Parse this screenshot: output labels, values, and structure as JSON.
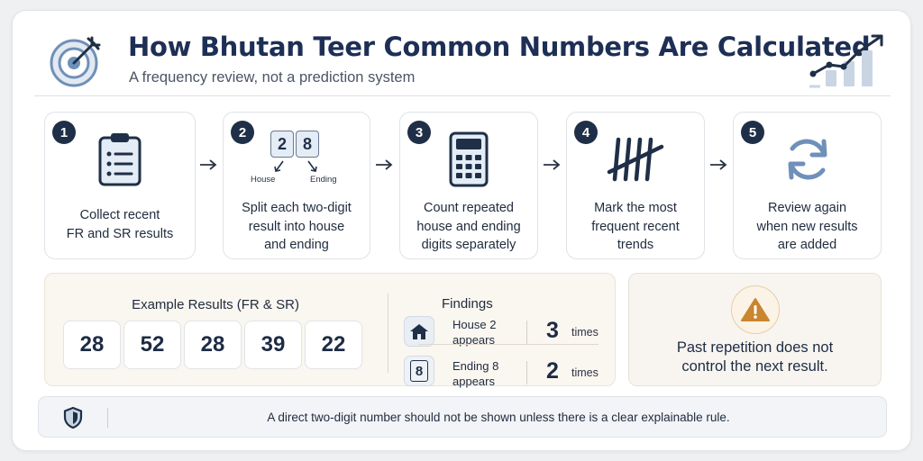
{
  "header": {
    "title": "How Bhutan Teer Common Numbers Are Calculated",
    "subtitle": "A frequency review, not a prediction system",
    "left_icon": "target-icon",
    "right_icon": "growth-chart-icon"
  },
  "steps": [
    {
      "number": "1",
      "icon": "clipboard-checklist-icon",
      "text": [
        "Collect recent",
        "FR and SR results"
      ]
    },
    {
      "number": "2",
      "icon": "digit-split-icon",
      "digits": [
        "2",
        "8"
      ],
      "digit_labels": [
        "House",
        "Ending"
      ],
      "text": [
        "Split each two-digit",
        "result into house",
        "and ending"
      ]
    },
    {
      "number": "3",
      "icon": "calculator-icon",
      "text": [
        "Count repeated",
        "house and ending",
        "digits separately"
      ]
    },
    {
      "number": "4",
      "icon": "tally-marks-icon",
      "text": [
        "Mark the most",
        "frequent recent",
        "trends"
      ]
    },
    {
      "number": "5",
      "icon": "refresh-icon",
      "text": [
        "Review again",
        "when new results",
        "are added"
      ]
    }
  ],
  "example": {
    "title": "Example Results (FR & SR)",
    "numbers": [
      "28",
      "52",
      "28",
      "39",
      "22"
    ]
  },
  "findings": {
    "title": "Findings",
    "items": [
      {
        "icon": "house-icon",
        "label": [
          "House 2",
          "appears"
        ],
        "count": "3",
        "unit": "times"
      },
      {
        "icon": "digit-eight-icon",
        "glyph": "8",
        "label": [
          "Ending 8",
          "appears"
        ],
        "count": "2",
        "unit": "times"
      }
    ]
  },
  "warning": {
    "icon": "warning-triangle-icon",
    "text": [
      "Past repetition does not",
      "control the next result."
    ],
    "colors": {
      "accent": "#c9852f"
    }
  },
  "footer": {
    "icon": "shield-icon",
    "text": "A direct two-digit number should not be shown unless there is a clear explainable rule."
  },
  "colors": {
    "title": "#1d2f55",
    "dark": "#1f2f47",
    "icon_blue": "#6f90b8",
    "panel_beige": "#faf6f0"
  }
}
